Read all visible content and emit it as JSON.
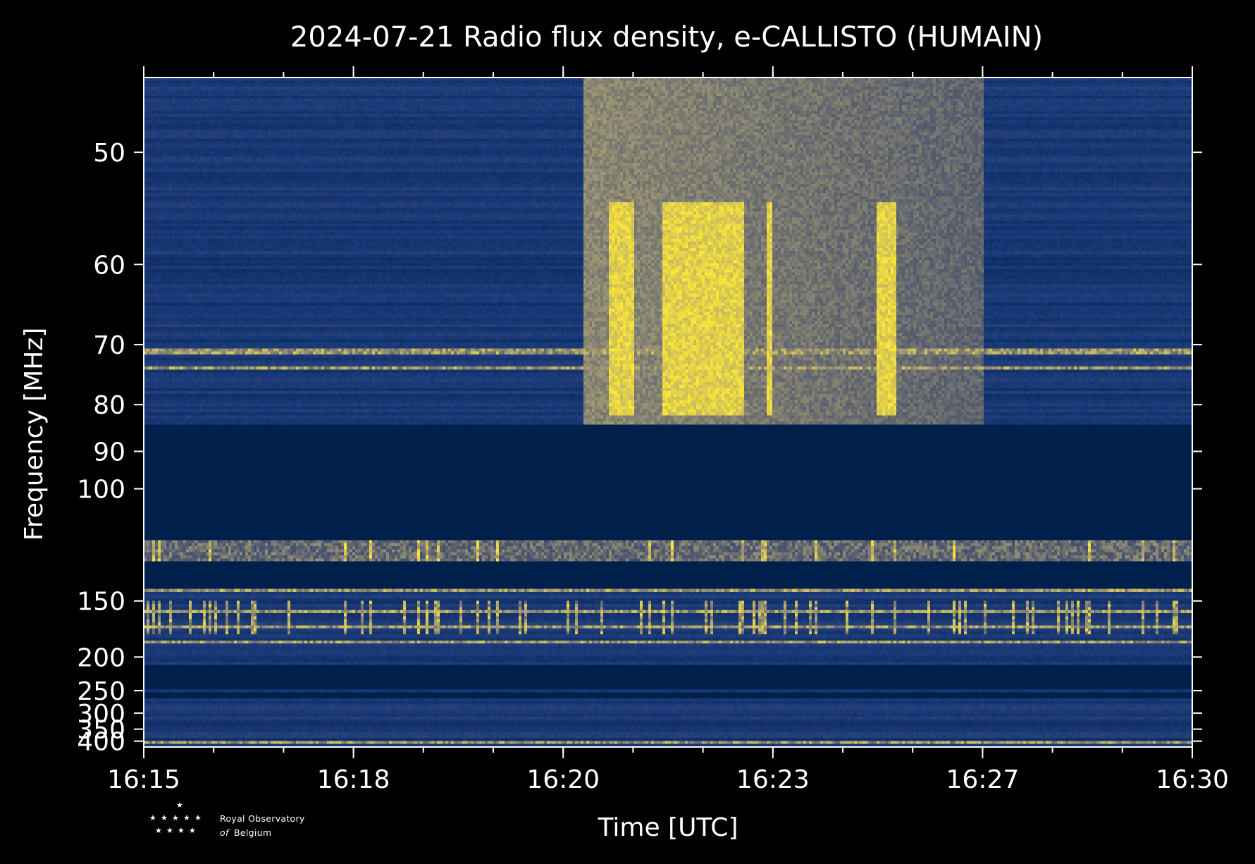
{
  "chart_data": {
    "type": "heatmap",
    "title": "2024-07-21 Radio flux density, e-CALLISTO (HUMAIN)",
    "xlabel": "Time [UTC]",
    "ylabel": "Frequency [MHz]",
    "x_ticks": [
      "16:15",
      "16:18",
      "16:20",
      "16:23",
      "16:27",
      "16:30"
    ],
    "y_ticks": [
      50,
      60,
      70,
      80,
      90,
      100,
      150,
      200,
      250,
      300,
      350,
      400
    ],
    "y_scale": "reciprocal",
    "x_range": [
      "16:15",
      "16:30"
    ],
    "y_range": [
      45,
      430
    ],
    "colormap": [
      "#00204c",
      "#1b3a7a",
      "#575d6d",
      "#a59c74",
      "#fee838"
    ],
    "blank_bands_mhz": [
      [
        84,
        118
      ],
      [
        128,
        143
      ],
      [
        208,
        245
      ],
      [
        252,
        268
      ]
    ],
    "burst": {
      "type": "solar radio burst",
      "start": "16:21:17",
      "end": "16:27:00",
      "freq_range_mhz": [
        45,
        84
      ],
      "peak_intervals": [
        [
          "16:21:40",
          "16:22:00"
        ],
        [
          "16:22:25",
          "16:23:35"
        ],
        [
          "16:23:55",
          "16:24:00"
        ],
        [
          "16:25:30",
          "16:25:45"
        ]
      ]
    },
    "rfi_lines_mhz": [
      71,
      73.5,
      119,
      121,
      143,
      157,
      163,
      170,
      183,
      405
    ]
  },
  "logo": {
    "line1": "Royal Observatory",
    "line2_prefix": "of",
    "line2": "Belgium"
  }
}
